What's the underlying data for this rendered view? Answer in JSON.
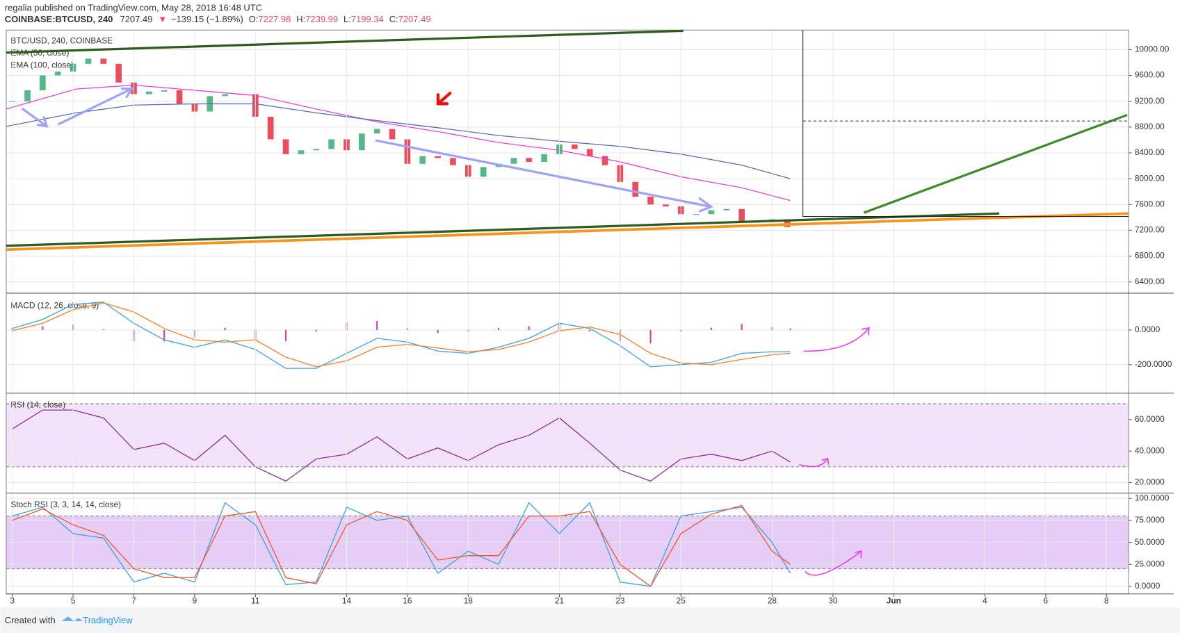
{
  "header": {
    "byline": "regalia published on TradingView.com, May 28, 2018 16:48 UTC",
    "symbol": "COINBASE:BTCUSD, 240",
    "price": "7207.49",
    "arrow": "▼",
    "change": "−139.15 (−1.89%)",
    "ohlc": [
      {
        "label": "O:",
        "value": "7227.98"
      },
      {
        "label": "H:",
        "value": "7239.99"
      },
      {
        "label": "L:",
        "value": "7199.34"
      },
      {
        "label": "C:",
        "value": "7207.49"
      }
    ]
  },
  "chart_data": [
    {
      "type": "candlestick",
      "title": "BTC/USD, 240, COINBASE",
      "xlim": [
        -0.2,
        36.73
      ],
      "ylim": [
        6225,
        10303
      ],
      "yticks": [
        {
          "value": 10000,
          "label": "10000.00"
        },
        {
          "value": 9600,
          "label": "9600.00"
        },
        {
          "value": 9200,
          "label": "9200.00"
        },
        {
          "value": 8800,
          "label": "8800.00"
        },
        {
          "value": 8400,
          "label": "8400.00"
        },
        {
          "value": 8000,
          "label": "8000.00"
        },
        {
          "value": 7600,
          "label": "7600.00"
        },
        {
          "value": 7200,
          "label": "7200.00"
        },
        {
          "value": 6800,
          "label": "6800.00"
        },
        {
          "value": 6400,
          "label": "6400.00"
        }
      ],
      "series": [
        {
          "style": "candlestick",
          "up_color": "#53b987",
          "down_color": "#eb4d5c",
          "x": [
            0,
            0.5,
            1,
            1.5,
            2,
            2.5,
            3,
            3.5,
            4,
            4.5,
            5,
            5.5,
            6,
            6.5,
            7,
            7.5,
            8,
            8.5,
            9,
            9.5,
            10,
            10.5,
            11,
            11.5,
            12,
            12.5,
            13,
            13.5,
            14,
            14.5,
            15,
            15.5,
            16,
            16.5,
            17,
            17.5,
            18,
            18.5,
            19,
            19.5,
            20,
            20.5,
            21,
            21.5,
            22,
            22.5,
            23,
            23.5,
            24,
            24.5,
            25,
            25.5
          ],
          "values": [
            9200,
            9370,
            9600,
            9660,
            9780,
            9860,
            9780,
            9490,
            9310,
            9350,
            9370,
            9160,
            9040,
            9280,
            9310,
            9310,
            8960,
            8610,
            8380,
            8440,
            8460,
            8610,
            8440,
            8700,
            8770,
            8610,
            8230,
            8350,
            8320,
            8210,
            8030,
            8180,
            8230,
            8320,
            8260,
            8380,
            8530,
            8460,
            8350,
            8210,
            7950,
            7720,
            7600,
            7570,
            7450,
            7450,
            7510,
            7530,
            7330,
            7330,
            7370,
            7250
          ]
        },
        {
          "style": "line",
          "name": "EMA (50, close)",
          "color": "#e542e0",
          "x": [
            -0.2,
            2.1,
            4,
            6,
            8,
            10,
            12,
            14,
            16,
            18,
            20,
            22,
            24,
            25.6
          ],
          "values": [
            9080,
            9390,
            9450,
            9370,
            9290,
            9080,
            8880,
            8730,
            8560,
            8440,
            8260,
            8030,
            7860,
            7660
          ]
        },
        {
          "style": "line",
          "name": "EMA (100, close)",
          "color": "#5d6ead",
          "x": [
            -0.2,
            2.1,
            4,
            6,
            8,
            10,
            12,
            14,
            16,
            18,
            20,
            22,
            24,
            25.6
          ],
          "values": [
            8810,
            9020,
            9140,
            9160,
            9160,
            9020,
            8900,
            8790,
            8670,
            8580,
            8500,
            8380,
            8210,
            8000
          ]
        }
      ]
    },
    {
      "type": "line",
      "title": "MACD (12, 26, close, 9)",
      "xlim": [
        -0.2,
        36.73
      ],
      "ylim": [
        -361,
        204
      ],
      "yticks": [
        {
          "value": 0,
          "label": "0.0000"
        },
        {
          "value": -200,
          "label": "-200.0000"
        }
      ],
      "x": [
        0,
        1,
        2,
        3,
        4,
        5,
        6,
        7,
        8,
        9,
        10,
        11,
        12,
        13,
        14,
        15,
        16,
        17,
        18,
        19,
        20,
        21,
        22,
        23,
        24,
        25,
        25.6
      ],
      "series": [
        {
          "style": "histogram",
          "color": "#e0409a",
          "values": [
            13,
            22,
            31,
            4,
            -65,
            -66,
            -43,
            13,
            -56,
            -65,
            -9,
            43,
            52,
            13,
            -18,
            -9,
            13,
            22,
            43,
            -8,
            -65,
            -78,
            -9,
            13,
            35,
            17,
            9
          ]
        },
        {
          "style": "line",
          "color": "#3ca1e6",
          "values": [
            9,
            61,
            148,
            161,
            39,
            -57,
            -100,
            -57,
            -113,
            -222,
            -222,
            -135,
            -48,
            -70,
            -122,
            -135,
            -100,
            -48,
            39,
            9,
            -91,
            -213,
            -200,
            -187,
            -135,
            -126,
            -126
          ]
        },
        {
          "style": "line",
          "color": "#f57c2a",
          "values": [
            -4,
            39,
            117,
            157,
            104,
            9,
            -57,
            -70,
            -57,
            -157,
            -213,
            -178,
            -100,
            -83,
            -104,
            -126,
            -113,
            -70,
            -4,
            17,
            -26,
            -135,
            -191,
            -200,
            -170,
            -143,
            -135
          ]
        }
      ]
    },
    {
      "type": "line",
      "title": "RSI (14, close)",
      "xlim": [
        -0.2,
        36.73
      ],
      "ylim": [
        13.8,
        76.2
      ],
      "band": [
        30,
        70
      ],
      "band_color": "#f3e3fa",
      "yticks": [
        {
          "value": 60,
          "label": "60.0000"
        },
        {
          "value": 40,
          "label": "40.0000"
        },
        {
          "value": 20,
          "label": "20.0000"
        }
      ],
      "x": [
        0,
        1,
        2,
        3,
        4,
        5,
        6,
        7,
        8,
        9,
        10,
        11,
        12,
        13,
        14,
        15,
        16,
        17,
        18,
        19,
        20,
        21,
        22,
        23,
        24,
        25,
        25.6
      ],
      "series": [
        {
          "style": "line",
          "color": "#8e2f8e",
          "values": [
            54,
            66,
            66,
            61,
            41,
            45,
            34,
            50,
            30,
            21,
            35,
            38,
            49,
            35,
            42,
            34,
            44,
            50,
            61,
            45,
            28,
            21,
            35,
            38,
            34,
            40,
            33
          ]
        }
      ]
    },
    {
      "type": "line",
      "title": "Stoch RSI (3, 3, 14, 14, close)",
      "xlim": [
        -0.2,
        36.73
      ],
      "ylim": [
        -8.5,
        105.1
      ],
      "band": [
        20,
        80
      ],
      "band_color": "#e6cdf7",
      "yticks": [
        {
          "value": 100,
          "label": "100.0000"
        },
        {
          "value": 75,
          "label": "75.0000"
        },
        {
          "value": 50,
          "label": "50.0000"
        },
        {
          "value": 25,
          "label": "25.0000"
        },
        {
          "value": 0,
          "label": "0.0000"
        }
      ],
      "xticks": [
        {
          "value": 0,
          "label": "3"
        },
        {
          "value": 2,
          "label": "5"
        },
        {
          "value": 4,
          "label": "7"
        },
        {
          "value": 6,
          "label": "9"
        },
        {
          "value": 8,
          "label": "11"
        },
        {
          "value": 11,
          "label": "14"
        },
        {
          "value": 13,
          "label": "16"
        },
        {
          "value": 15,
          "label": "18"
        },
        {
          "value": 18,
          "label": "21"
        },
        {
          "value": 20,
          "label": "23"
        },
        {
          "value": 22,
          "label": "25"
        },
        {
          "value": 25,
          "label": "28"
        },
        {
          "value": 27,
          "label": "30"
        },
        {
          "value": 29,
          "label": "Jun"
        },
        {
          "value": 32,
          "label": "4"
        },
        {
          "value": 34,
          "label": "6"
        },
        {
          "value": 36,
          "label": "8"
        }
      ],
      "x": [
        0,
        1,
        2,
        3,
        4,
        5,
        6,
        7,
        8,
        9,
        10,
        11,
        12,
        13,
        14,
        15,
        16,
        17,
        18,
        19,
        20,
        21,
        22,
        23,
        24,
        25,
        25.6
      ],
      "series": [
        {
          "style": "line",
          "color": "#3ca1e6",
          "values": [
            80,
            90,
            60,
            55,
            5,
            15,
            5,
            95,
            70,
            2,
            5,
            90,
            75,
            80,
            15,
            40,
            25,
            95,
            60,
            95,
            5,
            0,
            80,
            85,
            90,
            50,
            15
          ]
        },
        {
          "style": "line",
          "color": "#f5552a",
          "values": [
            75,
            88,
            70,
            58,
            20,
            10,
            10,
            80,
            85,
            10,
            3,
            70,
            85,
            75,
            30,
            35,
            35,
            80,
            80,
            85,
            25,
            0,
            60,
            82,
            92,
            40,
            25
          ]
        }
      ]
    }
  ],
  "footer": {
    "created": "Created with",
    "brand": "TradingView"
  }
}
